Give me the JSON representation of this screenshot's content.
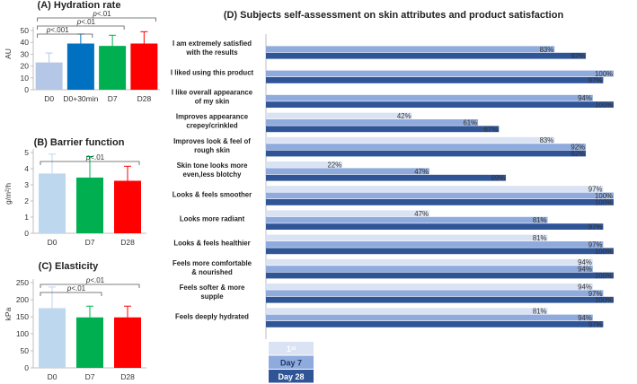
{
  "chart_data": [
    {
      "id": "A",
      "type": "bar",
      "title": "(A) Hydration rate",
      "ylabel": "AU",
      "ylim": [
        0,
        50
      ],
      "yticks": [
        0,
        10,
        20,
        30,
        40,
        50
      ],
      "categories": [
        "D0",
        "D0+30min",
        "D7",
        "D28"
      ],
      "values": [
        23,
        39,
        37,
        39
      ],
      "errors": [
        8,
        8,
        9,
        10
      ],
      "colors": [
        "#b4c7e7",
        "#0070c0",
        "#00b050",
        "#ff0000"
      ],
      "significance": [
        {
          "from": 0,
          "to": 1,
          "p": "<.001"
        },
        {
          "from": 0,
          "to": 2,
          "p": "<.01"
        },
        {
          "from": 0,
          "to": 3,
          "p": "<.01"
        }
      ]
    },
    {
      "id": "B",
      "type": "bar",
      "title": "(B) Barrier function",
      "ylabel": "g/m²/h",
      "ylim": [
        0,
        5
      ],
      "yticks": [
        0,
        1,
        2,
        3,
        4,
        5
      ],
      "categories": [
        "D0",
        "D7",
        "D28"
      ],
      "values": [
        3.7,
        3.45,
        3.25
      ],
      "errors": [
        1.2,
        1.3,
        0.9
      ],
      "colors": [
        "#bdd7ee",
        "#00b050",
        "#ff0000"
      ],
      "significance": [
        {
          "from": 0,
          "to": 2,
          "p": "<.01"
        }
      ]
    },
    {
      "id": "C",
      "type": "bar",
      "title": "(C) Elasticity",
      "ylabel": "kPa",
      "ylim": [
        0,
        250
      ],
      "yticks": [
        0,
        50,
        100,
        150,
        200,
        250
      ],
      "categories": [
        "D0",
        "D7",
        "D28"
      ],
      "values": [
        175,
        148,
        148
      ],
      "errors": [
        62,
        33,
        33
      ],
      "colors": [
        "#bdd7ee",
        "#00b050",
        "#ff0000"
      ],
      "significance": [
        {
          "from": 0,
          "to": 1,
          "p": "<.01"
        },
        {
          "from": 0,
          "to": 2,
          "p": "<.01"
        }
      ]
    },
    {
      "id": "D",
      "type": "bar",
      "orientation": "horizontal",
      "title": "(D) Subjects self-assessment on skin attributes and product satisfaction",
      "xlim": [
        0,
        100
      ],
      "series_colors": [
        "#dae3f3",
        "#8faadc",
        "#2f5597"
      ],
      "legend": [
        "1ˢᵗ",
        "Day 7",
        "Day 28"
      ],
      "items": [
        {
          "label": [
            "I am extremely satisfied",
            "with the results"
          ],
          "values": [
            null,
            83,
            92
          ]
        },
        {
          "label": [
            "I liked using this product"
          ],
          "values": [
            null,
            100,
            97
          ]
        },
        {
          "label": [
            "I like overall appearance",
            "of my skin"
          ],
          "values": [
            null,
            94,
            100
          ]
        },
        {
          "label": [
            "Improves appearance",
            "crepey/crinkled"
          ],
          "values": [
            42,
            61,
            67
          ]
        },
        {
          "label": [
            "Improves look & feel of",
            "rough skin"
          ],
          "values": [
            83,
            92,
            92
          ]
        },
        {
          "label": [
            "Skin tone looks more",
            "even,less blotchy"
          ],
          "values": [
            22,
            47,
            69
          ]
        },
        {
          "label": [
            "Looks & feels smoother"
          ],
          "values": [
            97,
            100,
            100
          ]
        },
        {
          "label": [
            "Looks more radiant"
          ],
          "values": [
            47,
            81,
            97
          ]
        },
        {
          "label": [
            "Looks & feels healthier"
          ],
          "values": [
            81,
            97,
            100
          ]
        },
        {
          "label": [
            "Feels more comfortable",
            "& nourished"
          ],
          "values": [
            94,
            94,
            100
          ]
        },
        {
          "label": [
            "Feels softer & more",
            "supple"
          ],
          "values": [
            94,
            97,
            100
          ]
        },
        {
          "label": [
            "Feels deeply hydrated"
          ],
          "values": [
            81,
            94,
            97
          ]
        }
      ]
    }
  ]
}
